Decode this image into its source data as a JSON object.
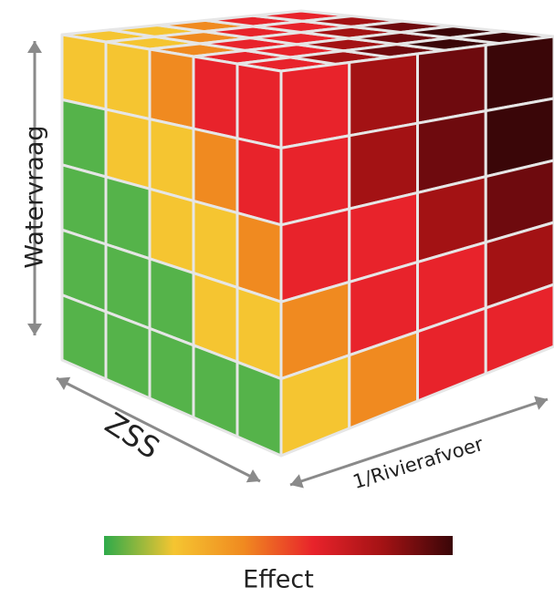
{
  "labels": {
    "vertical_axis": "Watervraag",
    "left_axis": "ZSS",
    "right_axis": "1/Rivierafvoer",
    "legend_title": "Effect"
  },
  "colors": {
    "green": "#55b34a",
    "yellow": "#f5c531",
    "orange": "#f08a20",
    "red": "#e8232b",
    "dark_red": "#a31214",
    "darker_red": "#6e0a0e",
    "darkest": "#3a0608",
    "arrow": "#8a8a8a",
    "grid_line": "#e6e6e6"
  },
  "legend": {
    "gradient": [
      "#2eaa4a",
      "#f5c531",
      "#f08a20",
      "#e8232b",
      "#a31214",
      "#3a0608"
    ]
  },
  "cube": {
    "front_face_levels": [
      [
        1,
        1,
        2,
        3,
        3
      ],
      [
        0,
        1,
        1,
        2,
        3
      ],
      [
        0,
        0,
        1,
        1,
        2
      ],
      [
        0,
        0,
        0,
        1,
        1
      ],
      [
        0,
        0,
        0,
        0,
        0
      ]
    ],
    "right_face_levels": [
      [
        3,
        4,
        5,
        6
      ],
      [
        3,
        4,
        5,
        6
      ],
      [
        3,
        3,
        4,
        5
      ],
      [
        2,
        3,
        3,
        4
      ],
      [
        1,
        2,
        3,
        3
      ]
    ],
    "top_face_levels": [
      [
        1,
        1,
        2,
        3,
        3
      ],
      [
        1,
        2,
        3,
        3,
        4
      ],
      [
        2,
        3,
        3,
        4,
        5
      ],
      [
        3,
        3,
        4,
        5,
        6
      ],
      [
        3,
        4,
        5,
        6,
        6
      ]
    ]
  }
}
